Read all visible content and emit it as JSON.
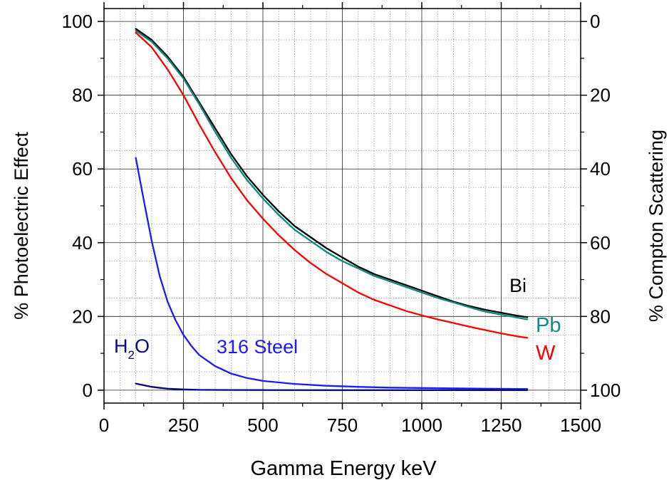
{
  "chart_data": {
    "type": "line",
    "title": "",
    "xlabel": "Gamma Energy keV",
    "ylabel": "% Photoelectric Effect",
    "ylabel_right": "% Compton Scattering",
    "xlim": [
      0,
      1500
    ],
    "ylim": [
      -3.5,
      103.5
    ],
    "ylim_right": [
      103.5,
      -3.5
    ],
    "x_ticks": [
      "0",
      "250",
      "500",
      "750",
      "1000",
      "1250",
      "1500"
    ],
    "y_ticks": [
      "0",
      "20",
      "40",
      "60",
      "80",
      "100"
    ],
    "y_ticks_right": [
      "100",
      "80",
      "60",
      "40",
      "20",
      "0"
    ],
    "grid": true,
    "legend": "inline labels",
    "series": [
      {
        "name": "Bi",
        "color": "#000000",
        "label_color": "#000000",
        "x": [
          100,
          150,
          200,
          250,
          300,
          350,
          400,
          450,
          500,
          550,
          600,
          650,
          700,
          750,
          800,
          850,
          900,
          950,
          1000,
          1050,
          1100,
          1150,
          1200,
          1250,
          1300,
          1332
        ],
        "y": [
          98,
          95,
          90.5,
          85,
          78,
          71,
          64,
          58,
          53,
          48.5,
          44.5,
          41.5,
          38.5,
          36,
          33.5,
          31.5,
          30,
          28.5,
          27,
          25.5,
          24,
          22.8,
          21.8,
          21,
          20.2,
          19.8
        ]
      },
      {
        "name": "Pb",
        "color": "#0a8a80",
        "label_color": "#138a8a",
        "x": [
          100,
          150,
          200,
          250,
          300,
          350,
          400,
          450,
          500,
          550,
          600,
          650,
          700,
          750,
          800,
          850,
          900,
          950,
          1000,
          1050,
          1100,
          1150,
          1200,
          1250,
          1300,
          1332
        ],
        "y": [
          97.5,
          94.5,
          90,
          84.5,
          77.5,
          70,
          63,
          57,
          52,
          47.5,
          43.5,
          40.5,
          37.5,
          35,
          33,
          31,
          29.5,
          28,
          26.5,
          25,
          23.8,
          22.5,
          21.3,
          20.5,
          19.7,
          19.2
        ]
      },
      {
        "name": "W",
        "color": "#ff0000",
        "label_color": "#ff0000",
        "x": [
          100,
          150,
          200,
          250,
          300,
          350,
          400,
          450,
          500,
          550,
          600,
          650,
          700,
          750,
          800,
          850,
          900,
          950,
          1000,
          1050,
          1100,
          1150,
          1200,
          1250,
          1300,
          1332
        ],
        "y": [
          97,
          93,
          87,
          80,
          72,
          64.5,
          57.5,
          51.5,
          46.5,
          42,
          38,
          34.5,
          31.5,
          29,
          26.5,
          24.5,
          23,
          21.5,
          20.3,
          19.2,
          18.2,
          17.2,
          16.3,
          15.4,
          14.6,
          14.2
        ]
      },
      {
        "name": "316 Steel",
        "color": "#1a1aff",
        "label_color": "#1a1aff",
        "x": [
          100,
          125,
          150,
          175,
          200,
          225,
          250,
          275,
          300,
          350,
          400,
          450,
          500,
          600,
          700,
          800,
          900,
          1000,
          1100,
          1200,
          1300,
          1332
        ],
        "y": [
          63,
          51.5,
          40.5,
          31,
          24,
          19,
          15,
          12,
          9.5,
          6.5,
          4.5,
          3.3,
          2.5,
          1.7,
          1.2,
          0.9,
          0.7,
          0.6,
          0.5,
          0.4,
          0.35,
          0.3
        ]
      },
      {
        "name": "H₂O",
        "label_main": "H",
        "label_sub": "2",
        "label_tail": "O",
        "color": "#0a0a80",
        "label_color": "#0a0a80",
        "x": [
          100,
          150,
          200,
          250,
          300,
          400,
          500,
          700,
          1000,
          1332
        ],
        "y": [
          1.8,
          0.9,
          0.4,
          0.2,
          0.1,
          0.05,
          0.03,
          0.02,
          0.01,
          0.01
        ]
      }
    ]
  }
}
